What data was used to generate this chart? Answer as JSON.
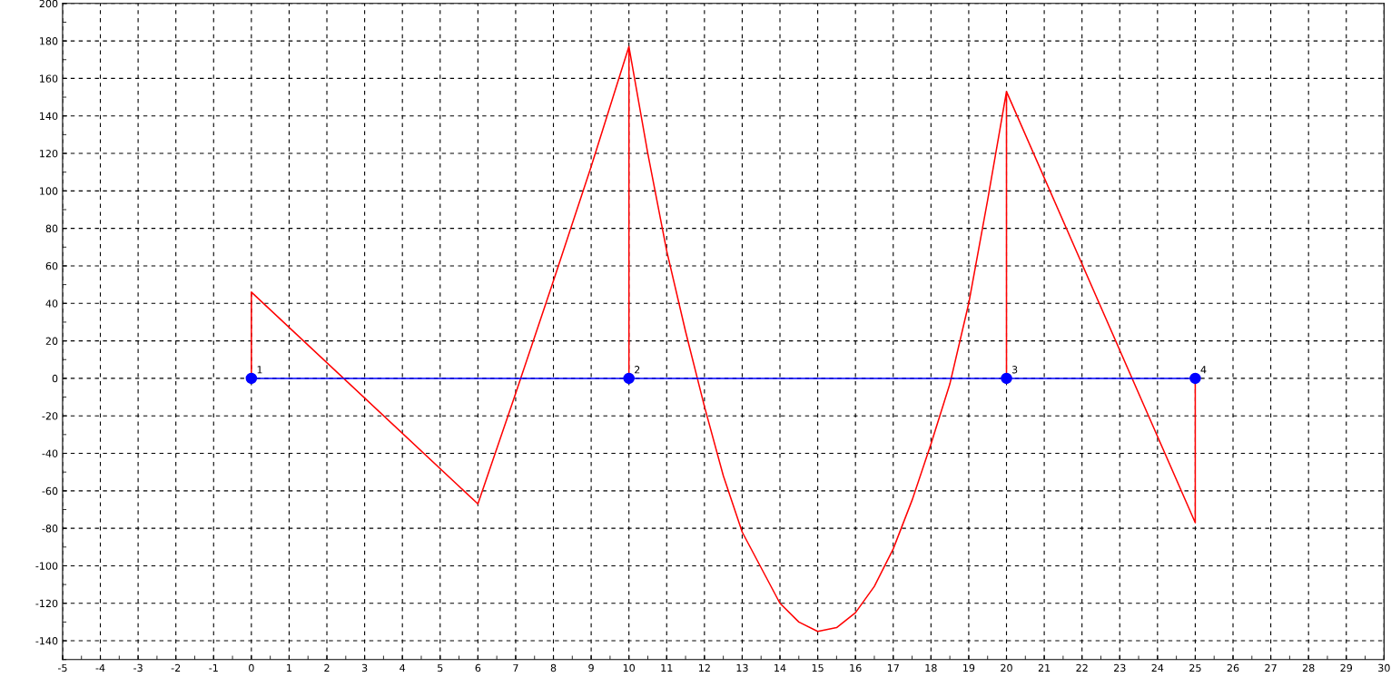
{
  "chart_data": {
    "type": "line",
    "series": [
      {
        "color": "#ff0000",
        "x": [
          0,
          0,
          6,
          7,
          8,
          9,
          10,
          10,
          10,
          10.5,
          11,
          11.5,
          12,
          12.5,
          13,
          14,
          14.5,
          15,
          15.5,
          16,
          16.5,
          17,
          17.5,
          18,
          18.5,
          19,
          19.5,
          20,
          20,
          20,
          25,
          25
        ],
        "values": [
          0,
          46,
          -67,
          -8,
          52,
          113,
          177,
          0,
          177,
          120,
          68,
          25,
          -15,
          -52,
          -82,
          -120,
          -130,
          -135,
          -133,
          -125,
          -111,
          -91,
          -65,
          -35,
          -3,
          40,
          95,
          153,
          0,
          153,
          -77,
          0
        ],
        "marker": "none"
      },
      {
        "color": "#0000ff",
        "x": [
          0,
          10,
          20,
          25
        ],
        "values": [
          0,
          0,
          0,
          0
        ],
        "marker": "circle"
      }
    ],
    "annotations": [
      {
        "text": "1",
        "x": 0,
        "y": 0
      },
      {
        "text": "2",
        "x": 10,
        "y": 0
      },
      {
        "text": "3",
        "x": 20,
        "y": 0
      },
      {
        "text": "4",
        "x": 25,
        "y": 0
      }
    ],
    "xlim": [
      -5,
      30
    ],
    "xticks": [
      -5,
      -4,
      -3,
      -2,
      -1,
      0,
      1,
      2,
      3,
      4,
      5,
      6,
      7,
      8,
      9,
      10,
      11,
      12,
      13,
      14,
      15,
      16,
      17,
      18,
      19,
      20,
      21,
      22,
      23,
      24,
      25,
      26,
      27,
      28,
      29,
      30
    ],
    "ylim": [
      -150,
      200
    ],
    "yticks": [
      -140,
      -120,
      -100,
      -80,
      -60,
      -40,
      -20,
      0,
      20,
      40,
      60,
      80,
      100,
      120,
      140,
      160,
      180,
      200
    ],
    "grid": true,
    "line_style": "solid"
  }
}
